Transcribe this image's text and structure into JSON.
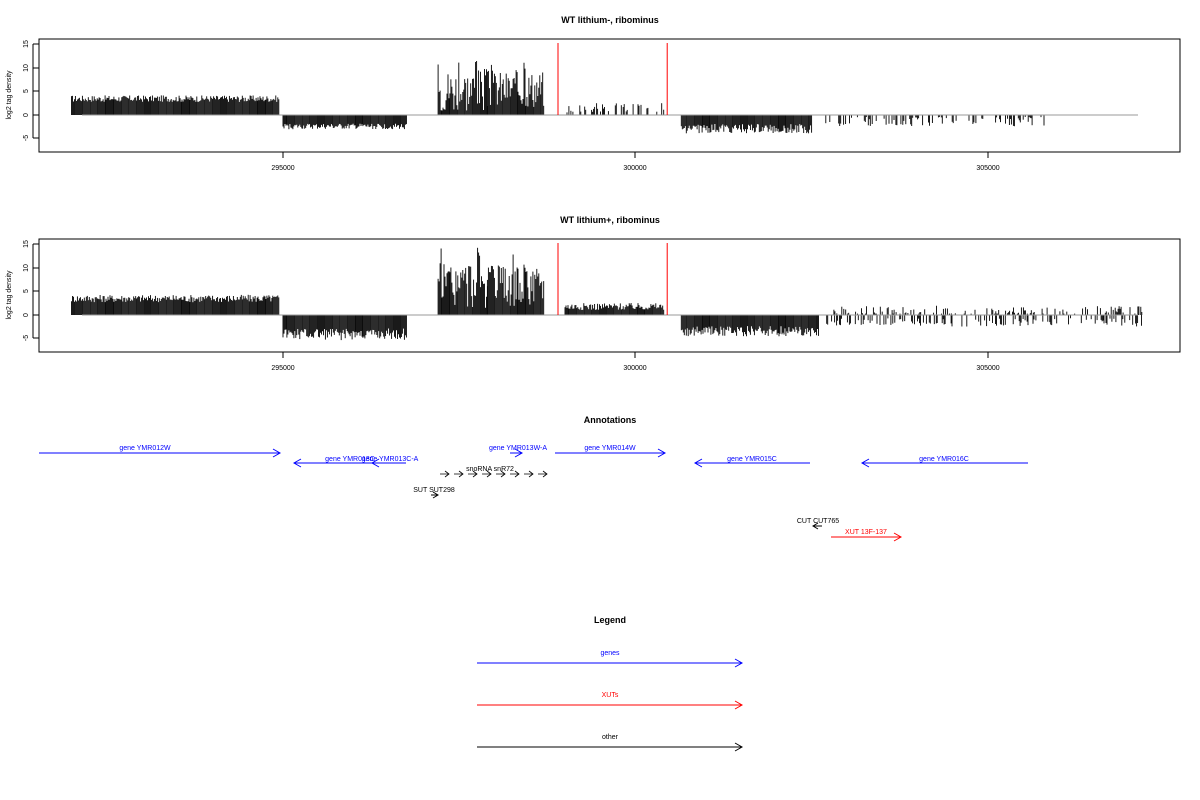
{
  "chart_data": [
    {
      "type": "bar",
      "title": "WT lithium-, ribominus",
      "xlabel": "",
      "ylabel": "log2 tag density",
      "xlim": [
        291800,
        307300
      ],
      "ylim": [
        -7.5,
        16
      ],
      "xticks": [
        295000,
        300000,
        305000
      ],
      "yticks": [
        -5,
        0,
        5,
        10,
        15
      ],
      "markers": [
        298900,
        300450
      ],
      "segments": [
        {
          "from": 292000,
          "to": 294950,
          "sign": 1,
          "mean": 3.2,
          "amp": 1.4
        },
        {
          "from": 295000,
          "to": 296750,
          "sign": -1,
          "mean": 2.2,
          "amp": 1.2
        },
        {
          "from": 297200,
          "to": 297900,
          "sign": 1,
          "mean": 3.5,
          "amp": 9.5
        },
        {
          "from": 297900,
          "to": 298700,
          "sign": 1,
          "mean": 4.0,
          "amp": 8.0
        },
        {
          "from": 299000,
          "to": 300400,
          "sign": 1,
          "mean": 1.2,
          "amp": 2.2
        },
        {
          "from": 300650,
          "to": 302500,
          "sign": -1,
          "mean": 2.5,
          "amp": 2.0
        },
        {
          "from": 302700,
          "to": 305800,
          "sign": -1,
          "mean": 1.0,
          "amp": 2.0
        }
      ],
      "series": [
        {
          "values": []
        }
      ]
    },
    {
      "type": "bar",
      "title": "WT lithium+, ribominus",
      "xlabel": "",
      "ylabel": "log2 tag density",
      "xlim": [
        291800,
        307300
      ],
      "ylim": [
        -7.5,
        16
      ],
      "xticks": [
        295000,
        300000,
        305000
      ],
      "yticks": [
        -5,
        0,
        5,
        10,
        15
      ],
      "markers": [
        298900,
        300450
      ],
      "segments": [
        {
          "from": 292000,
          "to": 294950,
          "sign": 1,
          "mean": 3.2,
          "amp": 1.6
        },
        {
          "from": 295000,
          "to": 296750,
          "sign": -1,
          "mean": 3.6,
          "amp": 2.5
        },
        {
          "from": 297200,
          "to": 297900,
          "sign": 1,
          "mean": 4.5,
          "amp": 10.0
        },
        {
          "from": 297900,
          "to": 298700,
          "sign": 1,
          "mean": 4.5,
          "amp": 8.5
        },
        {
          "from": 299000,
          "to": 300400,
          "sign": 1,
          "mean": 1.5,
          "amp": 1.5
        },
        {
          "from": 300650,
          "to": 302600,
          "sign": -1,
          "mean": 3.0,
          "amp": 2.2
        },
        {
          "from": 302600,
          "to": 307200,
          "sign": -1,
          "mean": 1.2,
          "amp": 1.8
        },
        {
          "from": 302800,
          "to": 307200,
          "sign": 1,
          "mean": 0.6,
          "amp": 2.0
        }
      ],
      "series": [
        {
          "values": []
        }
      ]
    }
  ],
  "tick_labels": [
    "295000",
    "300000",
    "305000"
  ],
  "ytick_labels": [
    "-5",
    "0",
    "5",
    "10",
    "15"
  ],
  "annotations": {
    "title": "Annotations",
    "colors": {
      "gene": "#0000ff",
      "xut": "#ff0000",
      "other": "#000000"
    },
    "items": [
      {
        "label": "gene YMR012W",
        "kind": "gene",
        "strand": "+",
        "start": 291800,
        "end": 294950
      },
      {
        "label": "gene YMR013C",
        "kind": "gene",
        "strand": "-",
        "start": 295150,
        "end": 296450
      },
      {
        "label": "gene YMR013C-A",
        "kind": "gene",
        "strand": "-",
        "start": 296150,
        "end": 296650
      },
      {
        "label": "gene YMR013W-A",
        "kind": "gene",
        "strand": "+",
        "start": 298300,
        "end": 298450
      },
      {
        "label": "gene YMR014W",
        "kind": "gene",
        "strand": "+",
        "start": 298650,
        "end": 300400
      },
      {
        "label": "gene YMR015C",
        "kind": "gene",
        "strand": "-",
        "start": 300850,
        "end": 302450
      },
      {
        "label": "gene YMR016C",
        "kind": "gene",
        "strand": "-",
        "start": 303100,
        "end": 305450
      },
      {
        "label": "SUT SUT298",
        "kind": "other",
        "strand": "+",
        "start": 296950,
        "end": 297050
      },
      {
        "label": "CUT CUT765",
        "kind": "other",
        "strand": "-",
        "start": 302500,
        "end": 302600
      },
      {
        "label": "XUT 13F-137",
        "kind": "xut",
        "strand": "+",
        "start": 302750,
        "end": 303750
      }
    ],
    "snoRNA_label": "snoRNA snR72",
    "snoRNA_count": 8
  },
  "legend": {
    "title": "Legend",
    "items": [
      {
        "label": "genes",
        "color": "#0000ff"
      },
      {
        "label": "XUTs",
        "color": "#ff0000"
      },
      {
        "label": "other",
        "color": "#000000"
      }
    ]
  }
}
